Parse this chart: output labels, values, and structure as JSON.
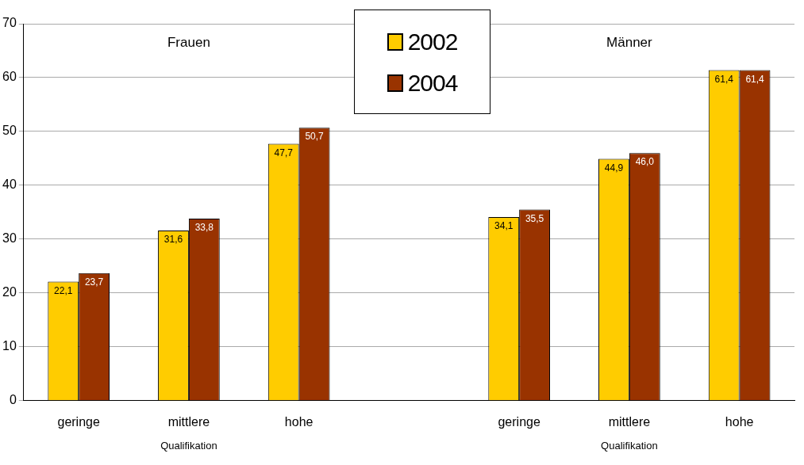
{
  "chart_data": {
    "type": "bar",
    "categories": [
      "geringe",
      "mittlere",
      "hohe",
      null,
      "geringe",
      "mittlere",
      "hohe"
    ],
    "series": [
      {
        "name": "2002",
        "color": "#ffcc00",
        "values": [
          22.1,
          31.6,
          47.7,
          null,
          34.1,
          44.9,
          61.4
        ],
        "value_labels": [
          "22,1",
          "31,6",
          "47,7",
          null,
          "34,1",
          "44,9",
          "61,4"
        ]
      },
      {
        "name": "2004",
        "color": "#993300",
        "values": [
          23.7,
          33.8,
          50.7,
          null,
          35.5,
          46.0,
          61.4
        ],
        "value_labels": [
          "23,7",
          "33,8",
          "50,7",
          null,
          "35,5",
          "46,0",
          "61,4"
        ]
      }
    ],
    "ylim": [
      0,
      70
    ],
    "yticks": [
      0,
      10,
      20,
      30,
      40,
      50,
      60,
      70
    ],
    "grid": "y",
    "legend": "top",
    "annotations": [
      "Frauen",
      "Männer",
      "Qualifikation",
      "Qualifikation"
    ]
  }
}
